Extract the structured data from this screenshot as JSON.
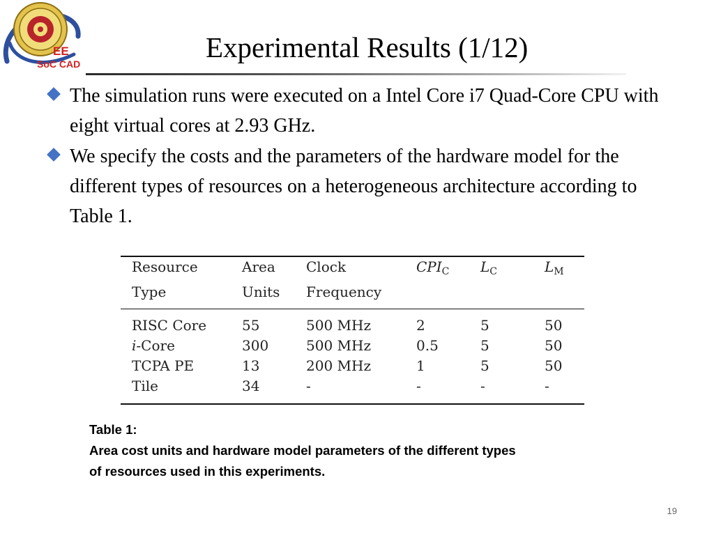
{
  "logo": {
    "icon": "university-seal-logo",
    "lettering": [
      "EE",
      "SoC CAD"
    ],
    "accent": "#2e4f9e"
  },
  "slide": {
    "title": "Experimental Results (1/12)",
    "bullets": [
      "The simulation runs were executed on a Intel Core i7 Quad-Core CPU with eight virtual cores at 2.93 GHz.",
      "We specify the costs and the parameters of the hardware model for the different types of resources on a heterogeneous architecture according to Table 1."
    ],
    "bullet_color": "#4472c4",
    "page_number": "19"
  },
  "table": {
    "headers": {
      "resource_type": [
        "Resource",
        "Type"
      ],
      "area_units": [
        "Area",
        "Units"
      ],
      "clock_frequency": [
        "Clock",
        "Frequency"
      ],
      "cpi": {
        "symbol": "CPI",
        "sub": "C"
      },
      "lc": {
        "symbol": "L",
        "sub": "C"
      },
      "lm": {
        "symbol": "L",
        "sub": "M"
      }
    },
    "rows": [
      {
        "prefix": "",
        "name": "RISC Core",
        "area": "55",
        "clock": "500 MHz",
        "cpi": "2",
        "lc": "5",
        "lm": "50"
      },
      {
        "prefix": "i",
        "name": "-Core",
        "area": "300",
        "clock": "500 MHz",
        "cpi": "0.5",
        "lc": "5",
        "lm": "50"
      },
      {
        "prefix": "",
        "name": "TCPA PE",
        "area": "13",
        "clock": "200 MHz",
        "cpi": "1",
        "lc": "5",
        "lm": "50"
      },
      {
        "prefix": "",
        "name": "Tile",
        "area": "34",
        "clock": "-",
        "cpi": "-",
        "lc": "-",
        "lm": "-"
      }
    ]
  },
  "caption": {
    "label": "Table 1:",
    "lines": [
      "Area cost units and hardware model parameters of the different types",
      "of resources used in this experiments."
    ]
  }
}
